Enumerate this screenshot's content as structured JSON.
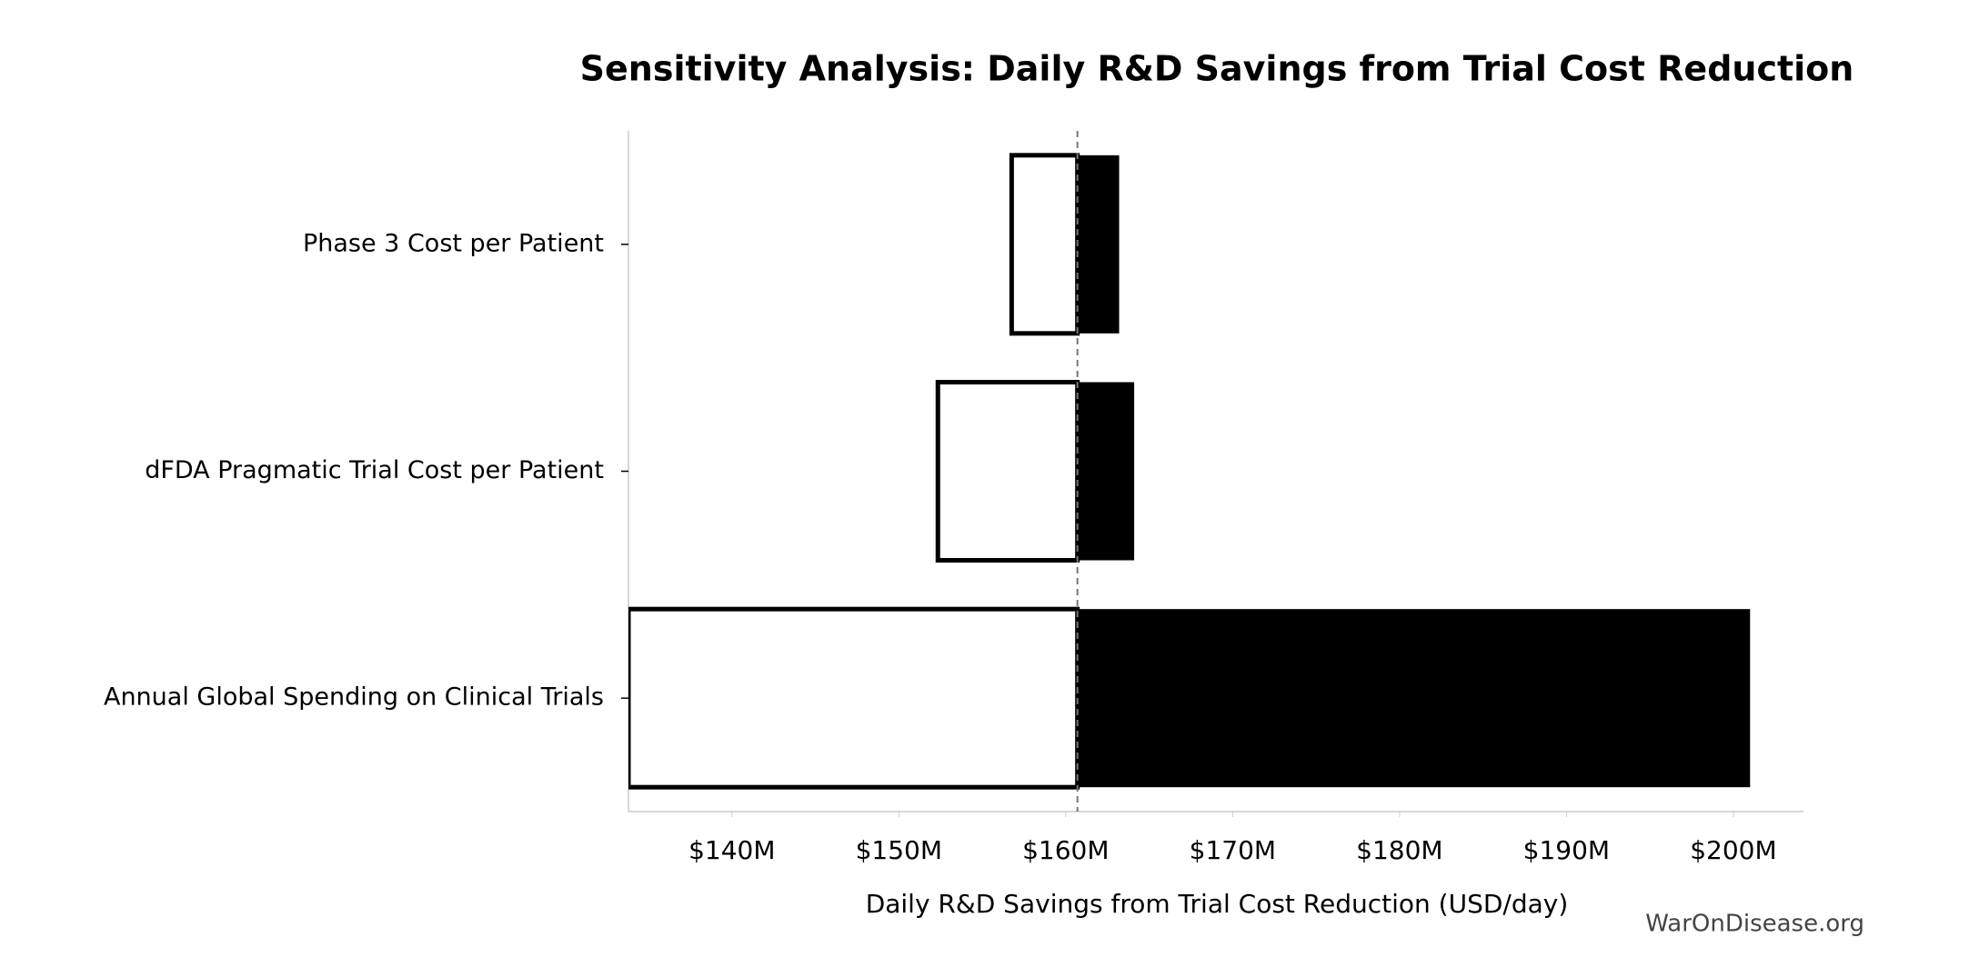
{
  "chart_data": {
    "type": "tornado",
    "title": "Sensitivity Analysis: Daily R&D Savings from Trial Cost Reduction",
    "x_label": "Daily R&D Savings from Trial Cost Reduction (USD/day)",
    "watermark": "WarOnDisease.org",
    "categories": [
      "Phase 3 Cost per Patient",
      "dFDA Pragmatic Trial Cost per Patient",
      "Annual Global Spending on Clinical Trials"
    ],
    "base": 160700000,
    "series": [
      {
        "color": "#ffffff",
        "values": [
          156760000,
          152340000,
          133800000
        ]
      },
      {
        "color": "#000000",
        "values": [
          163200000,
          164100000,
          201000000
        ]
      }
    ],
    "xlim": [
      133800000,
      204200000
    ],
    "xticks": [
      {
        "value": 140000000,
        "label": "$140M"
      },
      {
        "value": 150000000,
        "label": "$150M"
      },
      {
        "value": 160000000,
        "label": "$160M"
      },
      {
        "value": 170000000,
        "label": "$170M"
      },
      {
        "value": 180000000,
        "label": "$180M"
      },
      {
        "value": 190000000,
        "label": "$190M"
      },
      {
        "value": 200000000,
        "label": "$200M"
      }
    ]
  }
}
